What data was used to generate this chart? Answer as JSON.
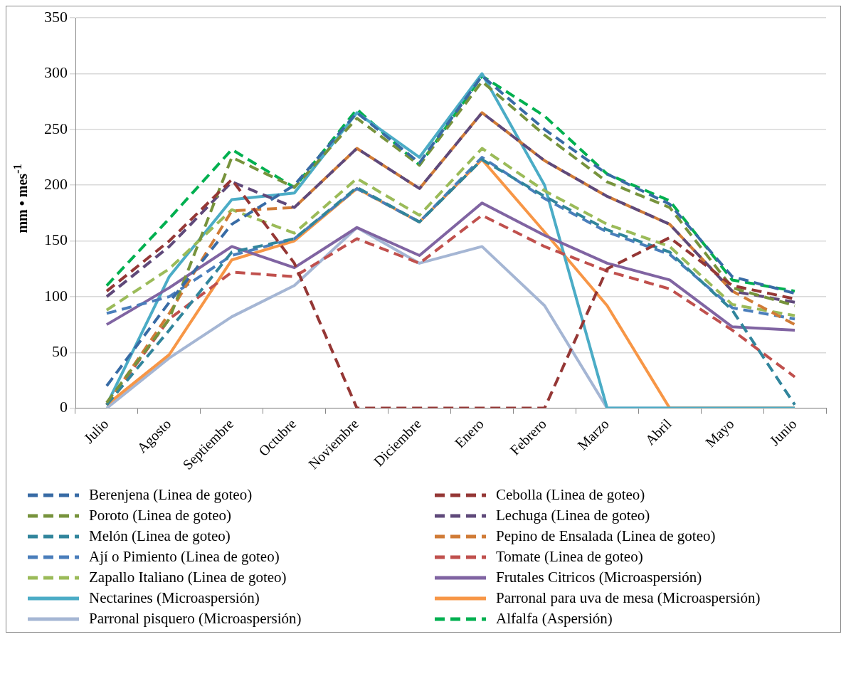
{
  "chart_data": {
    "type": "line",
    "ylabel": "mm • mes$^{-1}$",
    "categories": [
      "Julio",
      "Agosto",
      "Septiembre",
      "Octubre",
      "Noviembre",
      "Diciembre",
      "Enero",
      "Febrero",
      "Marzo",
      "Abril",
      "Mayo",
      "Junio"
    ],
    "ylim": [
      0,
      350
    ],
    "yticks": [
      0,
      50,
      100,
      150,
      200,
      250,
      300,
      350
    ],
    "grid": "y",
    "legend": "bottom",
    "marker": "none",
    "series": [
      {
        "name": "Berenjena (Linea de goteo)",
        "color": "#386ba5",
        "line_style": "dashed",
        "values": [
          20,
          95,
          165,
          200,
          265,
          220,
          298,
          250,
          210,
          183,
          118,
          103
        ]
      },
      {
        "name": "Cebolla (Linea de goteo)",
        "color": "#953735",
        "line_style": "dashed",
        "values": [
          105,
          150,
          205,
          130,
          0,
          0,
          0,
          0,
          125,
          153,
          110,
          98
        ]
      },
      {
        "name": "Poroto (Linea de goteo)",
        "color": "#77933c",
        "line_style": "dashed",
        "values": [
          5,
          80,
          225,
          198,
          260,
          218,
          293,
          245,
          203,
          180,
          108,
          92
        ]
      },
      {
        "name": "Lechuga (Linea de goteo)",
        "color": "#5f497a",
        "line_style": "dashed",
        "values": [
          100,
          145,
          203,
          180,
          233,
          197,
          265,
          222,
          190,
          165,
          105,
          95
        ]
      },
      {
        "name": "Melón (Linea de goteo)",
        "color": "#31859c",
        "line_style": "dashed",
        "values": [
          3,
          70,
          140,
          152,
          198,
          167,
          223,
          190,
          160,
          140,
          88,
          3
        ]
      },
      {
        "name": "Pepino de Ensalada (Linea de goteo)",
        "color": "#d07b36",
        "line_style": "dashed",
        "values": [
          3,
          85,
          177,
          180,
          233,
          197,
          265,
          222,
          190,
          165,
          105,
          75
        ]
      },
      {
        "name": "Ají o Pimiento (Linea de goteo)",
        "color": "#4a7ebb",
        "line_style": "dashed",
        "values": [
          85,
          100,
          137,
          152,
          197,
          167,
          225,
          188,
          158,
          138,
          90,
          80
        ]
      },
      {
        "name": "Tomate (Linea de goteo)",
        "color": "#c0504d",
        "line_style": "dashed",
        "values": [
          3,
          80,
          122,
          118,
          152,
          130,
          173,
          145,
          123,
          107,
          70,
          28
        ]
      },
      {
        "name": "Zapallo Italiano (Linea de goteo)",
        "color": "#9bbb59",
        "line_style": "dashed",
        "values": [
          88,
          125,
          178,
          157,
          206,
          173,
          233,
          195,
          165,
          145,
          93,
          83
        ]
      },
      {
        "name": "Frutales Citricos (Microaspersión)",
        "color": "#8064a2",
        "line_style": "solid",
        "values": [
          75,
          108,
          145,
          126,
          162,
          137,
          184,
          155,
          130,
          115,
          73,
          70
        ]
      },
      {
        "name": "Nectarines (Microaspersión)",
        "color": "#4bacc6",
        "line_style": "solid",
        "values": [
          3,
          118,
          187,
          193,
          265,
          225,
          300,
          200,
          0,
          0,
          0,
          0
        ]
      },
      {
        "name": "Parronal para uva de mesa (Microaspersión)",
        "color": "#f79646",
        "line_style": "solid",
        "values": [
          3,
          48,
          133,
          150,
          197,
          167,
          223,
          158,
          92,
          0,
          0,
          0
        ]
      },
      {
        "name": "Parronal pisquero (Microaspersión)",
        "color": "#a5b6d4",
        "line_style": "solid",
        "values": [
          0,
          45,
          82,
          110,
          162,
          130,
          145,
          92,
          0,
          0,
          0,
          0
        ]
      },
      {
        "name": "Alfalfa (Aspersión)",
        "color": "#00b050",
        "line_style": "dashed",
        "values": [
          110,
          170,
          232,
          198,
          268,
          218,
          298,
          262,
          210,
          186,
          115,
          105
        ]
      }
    ]
  }
}
